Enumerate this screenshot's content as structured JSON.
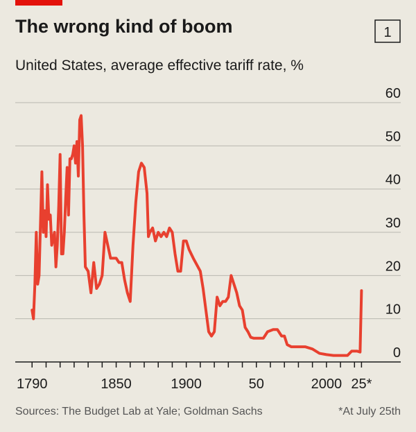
{
  "chart_data": {
    "type": "line",
    "title": "The wrong kind of boom",
    "chart_number": "1",
    "subtitle": "United States, average effective tariff rate, %",
    "source": "Sources: The Budget Lab at Yale; Goldman Sachs",
    "note": "*At July 25th",
    "color": "#e8402f",
    "x": [
      1790,
      1791,
      1792,
      1793,
      1794,
      1795,
      1797,
      1798,
      1799,
      1800,
      1801,
      1802,
      1803,
      1804,
      1806,
      1807,
      1808,
      1809,
      1810,
      1811,
      1812,
      1813,
      1814,
      1815,
      1816,
      1817,
      1818,
      1819,
      1820,
      1821,
      1822,
      1823,
      1824,
      1825,
      1826,
      1827,
      1828,
      1830,
      1832,
      1834,
      1836,
      1838,
      1840,
      1842,
      1844,
      1846,
      1848,
      1850,
      1852,
      1854,
      1856,
      1858,
      1860,
      1862,
      1864,
      1866,
      1868,
      1870,
      1872,
      1873,
      1874,
      1876,
      1878,
      1880,
      1882,
      1884,
      1886,
      1888,
      1890,
      1892,
      1894,
      1896,
      1898,
      1900,
      1902,
      1905,
      1910,
      1912,
      1914,
      1916,
      1918,
      1920,
      1922,
      1924,
      1926,
      1928,
      1930,
      1932,
      1934,
      1936,
      1938,
      1940,
      1942,
      1944,
      1946,
      1948,
      1950,
      1955,
      1958,
      1962,
      1965,
      1968,
      1970,
      1972,
      1975,
      1980,
      1985,
      1990,
      1995,
      2000,
      2005,
      2010,
      2015,
      2018,
      2022,
      2024,
      2025
    ],
    "values": [
      12,
      10,
      18,
      30,
      18,
      20,
      44,
      30,
      35,
      29,
      41,
      33,
      34,
      27,
      30,
      22,
      27,
      36,
      48,
      25,
      25,
      30,
      38,
      45,
      34,
      47,
      47,
      48,
      50,
      46,
      51,
      43,
      56,
      57,
      50,
      34,
      22,
      21,
      16,
      23,
      17,
      18,
      20,
      30,
      27,
      24,
      24,
      24,
      23,
      23,
      19,
      16,
      14,
      27,
      37,
      44,
      46,
      45,
      39,
      29,
      30,
      31,
      28,
      30,
      29,
      30,
      29,
      31,
      30,
      25,
      21,
      21,
      28,
      28,
      26,
      24,
      21,
      17,
      12,
      7,
      6,
      7,
      15,
      13,
      14,
      14,
      15,
      20,
      18,
      16,
      13,
      12,
      8,
      7,
      5.7,
      5.5,
      5.5,
      5.5,
      7,
      7.5,
      7.5,
      6,
      6,
      4,
      3.5,
      3.5,
      3.5,
      3,
      2,
      1.7,
      1.5,
      1.5,
      1.5,
      2.5,
      2.5,
      2.3,
      16.5
    ],
    "xlim": [
      1778,
      2053
    ],
    "ylim": [
      0,
      60
    ],
    "yticks": [
      0,
      10,
      20,
      30,
      40,
      50,
      60
    ],
    "xticks": [
      1790,
      1850,
      1900,
      {
        "value": 1950,
        "label": "50"
      },
      2000,
      {
        "value": 2025,
        "label": "25*"
      }
    ],
    "xminorticks": [
      1800,
      1810,
      1820,
      1830,
      1840,
      1860,
      1870,
      1880,
      1890,
      1910,
      1920,
      1930,
      1940,
      1960,
      1970,
      1980,
      1990,
      2010,
      2020
    ],
    "grid": true
  }
}
